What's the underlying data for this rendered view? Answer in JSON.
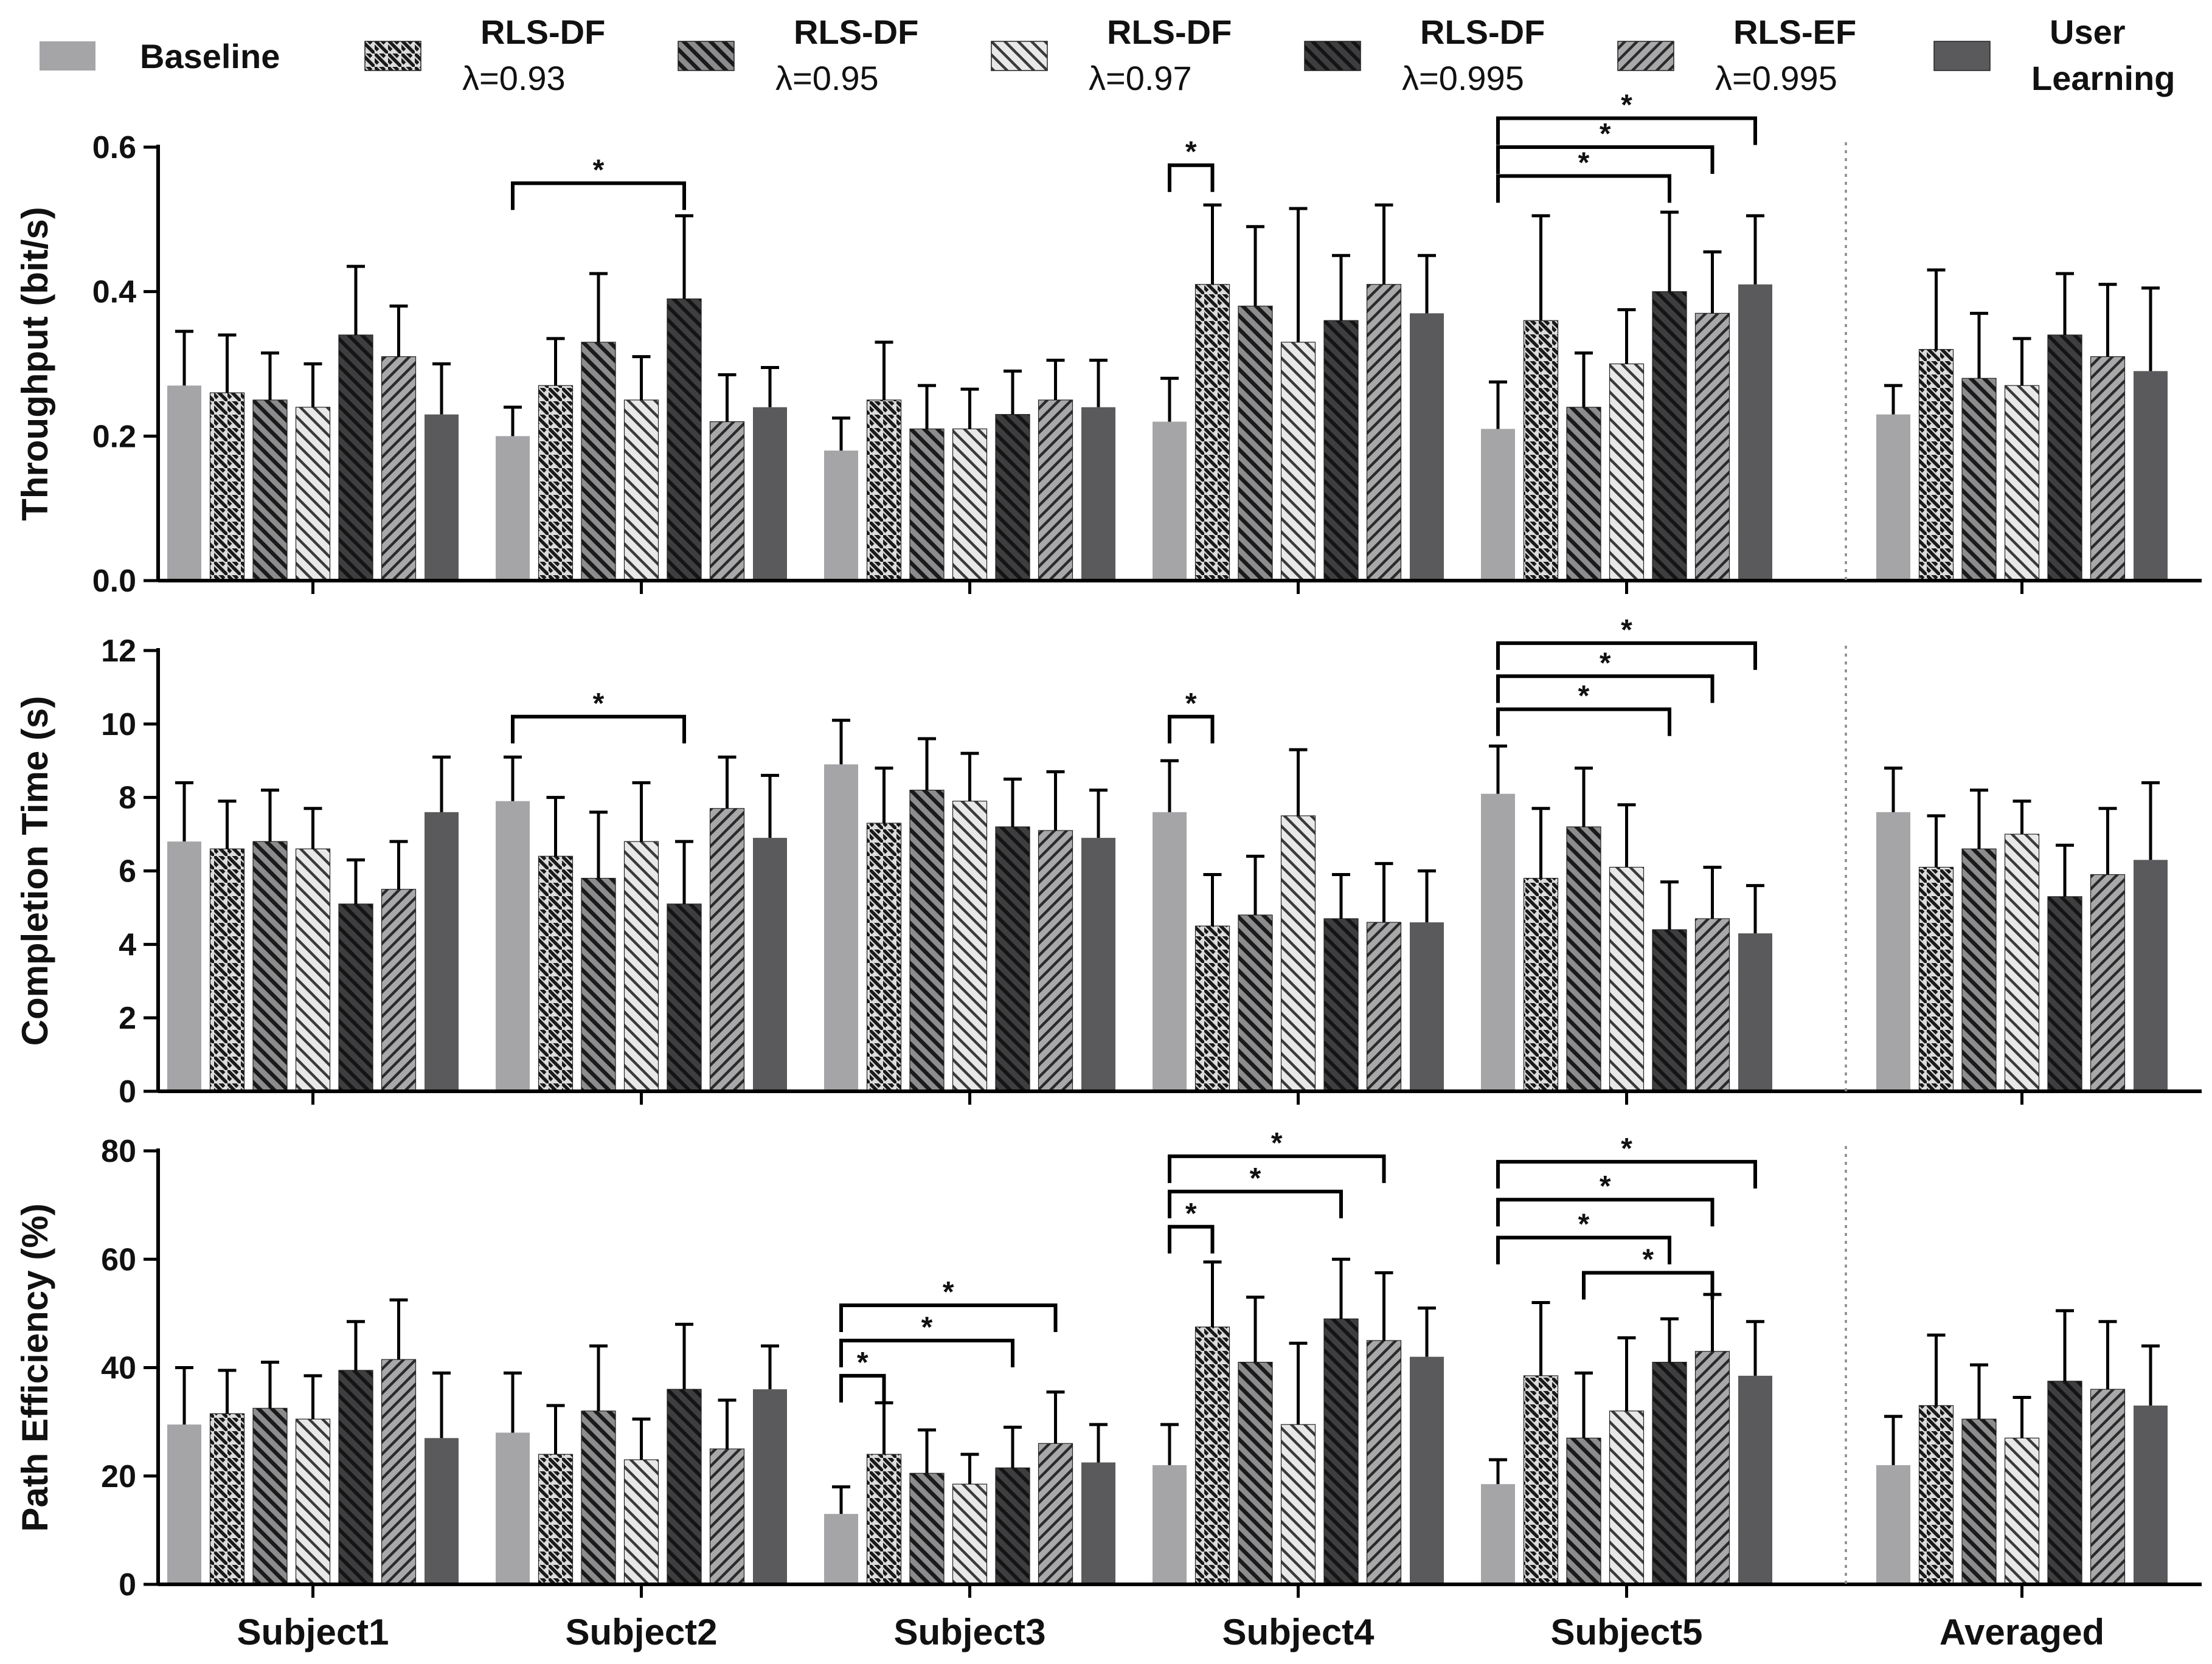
{
  "chart_data": {
    "type": "bar",
    "categories": [
      "Subject1",
      "Subject2",
      "Subject3",
      "Subject4",
      "Subject5",
      "Averaged"
    ],
    "series_legend": [
      {
        "name": "Baseline",
        "sub": "",
        "fill": "baseline"
      },
      {
        "name": "RLS-DF",
        "sub": "λ=0.93",
        "fill": "p093"
      },
      {
        "name": "RLS-DF",
        "sub": "λ=0.95",
        "fill": "p095"
      },
      {
        "name": "RLS-DF",
        "sub": "λ=0.97",
        "fill": "p097"
      },
      {
        "name": "RLS-DF",
        "sub": "λ=0.995",
        "fill": "p0995"
      },
      {
        "name": "RLS-EF",
        "sub": "λ=0.995",
        "fill": "pef"
      },
      {
        "name": "User",
        "sub": "Learning",
        "fill": "user"
      }
    ],
    "colors": {
      "baseline": "#a5a5a8",
      "dark": "#5a5a5c",
      "darker": "#3c3c3e",
      "light_bg": "#dcdcdc",
      "mid_bg": "#9a9a9c",
      "line": "#000000",
      "divider": "#8a8a8a"
    },
    "panels": [
      {
        "ylabel": "Throughput (bit/s)",
        "ylim": [
          0,
          0.6
        ],
        "ticks": [
          0,
          0.2,
          0.4,
          0.6
        ],
        "tick_labels": [
          "0.0",
          "0.2",
          "0.4",
          "0.6"
        ],
        "means": [
          [
            0.27,
            0.26,
            0.25,
            0.24,
            0.34,
            0.31,
            0.23
          ],
          [
            0.2,
            0.27,
            0.33,
            0.25,
            0.39,
            0.22,
            0.24
          ],
          [
            0.18,
            0.25,
            0.21,
            0.21,
            0.23,
            0.25,
            0.24
          ],
          [
            0.22,
            0.41,
            0.38,
            0.33,
            0.36,
            0.41,
            0.37
          ],
          [
            0.21,
            0.36,
            0.24,
            0.3,
            0.4,
            0.37,
            0.41
          ],
          [
            0.23,
            0.32,
            0.28,
            0.27,
            0.34,
            0.31,
            0.29
          ]
        ],
        "errors": [
          [
            0.075,
            0.08,
            0.065,
            0.06,
            0.095,
            0.07,
            0.07
          ],
          [
            0.04,
            0.065,
            0.095,
            0.06,
            0.115,
            0.065,
            0.055
          ],
          [
            0.045,
            0.08,
            0.06,
            0.055,
            0.06,
            0.055,
            0.065
          ],
          [
            0.06,
            0.11,
            0.11,
            0.185,
            0.09,
            0.11,
            0.08
          ],
          [
            0.065,
            0.145,
            0.075,
            0.075,
            0.11,
            0.085,
            0.095
          ],
          [
            0.04,
            0.11,
            0.09,
            0.065,
            0.085,
            0.1,
            0.115
          ]
        ],
        "significance": [
          {
            "group": 1,
            "from": 0,
            "to": 4,
            "y": 0.55,
            "label": "*"
          },
          {
            "group": 3,
            "from": 0,
            "to": 1,
            "y": 0.575,
            "label": "*"
          },
          {
            "group": 4,
            "from": 0,
            "to": 4,
            "y": 0.56,
            "label": "*"
          },
          {
            "group": 4,
            "from": 0,
            "to": 5,
            "y": 0.6,
            "label": "*"
          },
          {
            "group": 4,
            "from": 0,
            "to": 6,
            "y": 0.64,
            "label": "*"
          }
        ]
      },
      {
        "ylabel": "Completion Time (s)",
        "ylim": [
          0,
          12
        ],
        "ticks": [
          0,
          2,
          4,
          6,
          8,
          10,
          12
        ],
        "tick_labels": [
          "0",
          "2",
          "4",
          "6",
          "8",
          "10",
          "12"
        ],
        "means": [
          [
            6.8,
            6.6,
            6.8,
            6.6,
            5.1,
            5.5,
            7.6
          ],
          [
            7.9,
            6.4,
            5.8,
            6.8,
            5.1,
            7.7,
            6.9
          ],
          [
            8.9,
            7.3,
            8.2,
            7.9,
            7.2,
            7.1,
            6.9
          ],
          [
            7.6,
            4.5,
            4.8,
            7.5,
            4.7,
            4.6,
            4.6
          ],
          [
            8.1,
            5.8,
            7.2,
            6.1,
            4.4,
            4.7,
            4.3
          ],
          [
            7.6,
            6.1,
            6.6,
            7.0,
            5.3,
            5.9,
            6.3
          ]
        ],
        "errors": [
          [
            1.6,
            1.3,
            1.4,
            1.1,
            1.2,
            1.3,
            1.5
          ],
          [
            1.2,
            1.6,
            1.8,
            1.6,
            1.7,
            1.4,
            1.7
          ],
          [
            1.2,
            1.5,
            1.4,
            1.3,
            1.3,
            1.6,
            1.3
          ],
          [
            1.4,
            1.4,
            1.6,
            1.8,
            1.2,
            1.6,
            1.4
          ],
          [
            1.3,
            1.9,
            1.6,
            1.7,
            1.3,
            1.4,
            1.3
          ],
          [
            1.2,
            1.4,
            1.6,
            0.9,
            1.4,
            1.8,
            2.1
          ]
        ],
        "significance": [
          {
            "group": 1,
            "from": 0,
            "to": 4,
            "y": 10.2,
            "label": "*"
          },
          {
            "group": 3,
            "from": 0,
            "to": 1,
            "y": 10.2,
            "label": "*"
          },
          {
            "group": 4,
            "from": 0,
            "to": 4,
            "y": 10.4,
            "label": "*"
          },
          {
            "group": 4,
            "from": 0,
            "to": 5,
            "y": 11.3,
            "label": "*"
          },
          {
            "group": 4,
            "from": 0,
            "to": 6,
            "y": 12.2,
            "label": "*"
          }
        ]
      },
      {
        "ylabel": "Path Efficiency (%)",
        "ylim": [
          0,
          80
        ],
        "ticks": [
          0,
          20,
          40,
          60,
          80
        ],
        "tick_labels": [
          "0",
          "20",
          "40",
          "60",
          "80"
        ],
        "means": [
          [
            29.5,
            31.5,
            32.5,
            30.5,
            39.5,
            41.5,
            27
          ],
          [
            28,
            24,
            32,
            23,
            36,
            25,
            36
          ],
          [
            13,
            24,
            20.5,
            18.5,
            21.5,
            26,
            22.5
          ],
          [
            22,
            47.5,
            41,
            29.5,
            49,
            45,
            42
          ],
          [
            18.5,
            38.5,
            27,
            32,
            41,
            43,
            38.5
          ],
          [
            22,
            33,
            30.5,
            27,
            37.5,
            36,
            33
          ]
        ],
        "errors": [
          [
            10.5,
            8,
            8.5,
            8,
            9,
            11,
            12
          ],
          [
            11,
            9,
            12,
            7.5,
            12,
            9,
            8
          ],
          [
            5,
            9.5,
            8,
            5.5,
            7.5,
            9.5,
            7
          ],
          [
            7.5,
            12,
            12,
            15,
            11,
            12.5,
            9
          ],
          [
            4.5,
            13.5,
            12,
            13.5,
            8,
            10.5,
            10
          ],
          [
            9,
            13,
            10,
            7.5,
            13,
            12.5,
            11
          ]
        ],
        "significance": [
          {
            "group": 2,
            "from": 0,
            "to": 1,
            "y": 38.5,
            "label": "*"
          },
          {
            "group": 2,
            "from": 0,
            "to": 4,
            "y": 45,
            "label": "*"
          },
          {
            "group": 2,
            "from": 0,
            "to": 5,
            "y": 51.5,
            "label": "*"
          },
          {
            "group": 3,
            "from": 0,
            "to": 1,
            "y": 66,
            "label": "*"
          },
          {
            "group": 3,
            "from": 0,
            "to": 4,
            "y": 72.5,
            "label": "*"
          },
          {
            "group": 3,
            "from": 0,
            "to": 5,
            "y": 79,
            "label": "*"
          },
          {
            "group": 4,
            "from": 2,
            "to": 5,
            "y": 57.5,
            "label": "*"
          },
          {
            "group": 4,
            "from": 0,
            "to": 4,
            "y": 64,
            "label": "*"
          },
          {
            "group": 4,
            "from": 0,
            "to": 5,
            "y": 71,
            "label": "*"
          },
          {
            "group": 4,
            "from": 0,
            "to": 6,
            "y": 78,
            "label": "*"
          }
        ]
      }
    ]
  }
}
